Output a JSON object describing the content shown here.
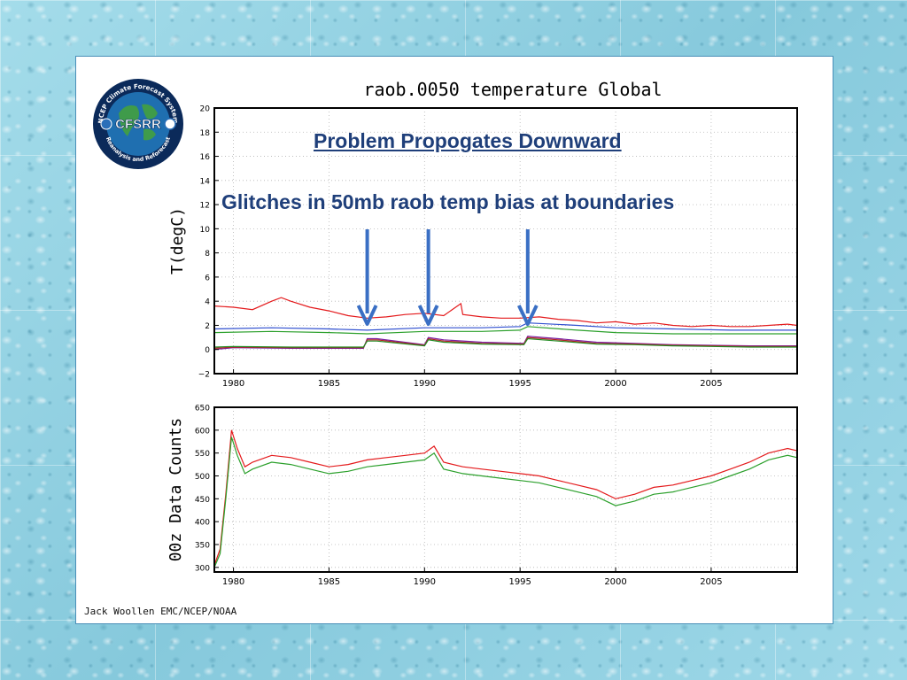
{
  "overlay": {
    "title": "Problem Propogates Downward",
    "subtitle": "Glitches in 50mb raob temp bias at boundaries",
    "arrows_at_years": [
      1987.0,
      1990.2,
      1995.4
    ],
    "arrow_color": "#3a6fc4",
    "text_color": "#1f3f7a"
  },
  "credit": "Jack Woollen EMC/NCEP/NOAA",
  "logo": {
    "main": "CFSRR",
    "top_arc": "NCEP Climate Forecast System",
    "bottom_arc": "Reanalysis and Reforecast"
  },
  "chart_data": [
    {
      "type": "line",
      "title": "raob.0050 temperature Global",
      "xlabel": "",
      "ylabel": "T(degC)",
      "xlim": [
        1979,
        2009.5
      ],
      "ylim": [
        -2,
        20
      ],
      "xticks": [
        1980,
        1985,
        1990,
        1995,
        2000,
        2005
      ],
      "yticks": [
        -2,
        0,
        2,
        4,
        6,
        8,
        10,
        12,
        14,
        16,
        18,
        20
      ],
      "grid": true,
      "series": [
        {
          "name": "red",
          "color": "#e41a1c",
          "x": [
            1979,
            1980,
            1981,
            1982,
            1982.5,
            1983,
            1984,
            1985,
            1986,
            1987,
            1988,
            1989,
            1990,
            1991,
            1991.9,
            1992,
            1993,
            1994,
            1995,
            1996,
            1997,
            1998,
            1999,
            2000,
            2001,
            2002,
            2003,
            2004,
            2005,
            2006,
            2007,
            2008,
            2009,
            2009.5
          ],
          "y": [
            3.6,
            3.5,
            3.3,
            4.0,
            4.3,
            4.0,
            3.5,
            3.2,
            2.8,
            2.6,
            2.7,
            2.9,
            3.0,
            2.8,
            3.8,
            2.9,
            2.7,
            2.6,
            2.6,
            2.7,
            2.5,
            2.4,
            2.2,
            2.3,
            2.1,
            2.2,
            2.0,
            1.9,
            2.0,
            1.9,
            1.9,
            2.0,
            2.1,
            2.0
          ]
        },
        {
          "name": "blue",
          "color": "#3050d0",
          "x": [
            1979,
            1982,
            1985,
            1987,
            1990,
            1993,
            1995,
            1995.4,
            1998,
            2000,
            2003,
            2006,
            2009.5
          ],
          "y": [
            1.7,
            1.8,
            1.7,
            1.6,
            1.8,
            1.8,
            1.9,
            2.2,
            2.0,
            1.8,
            1.7,
            1.6,
            1.6
          ]
        },
        {
          "name": "green",
          "color": "#2ca02c",
          "x": [
            1979,
            1982,
            1985,
            1987,
            1990,
            1993,
            1995,
            1995.4,
            1998,
            2000,
            2003,
            2006,
            2009.5
          ],
          "y": [
            1.4,
            1.5,
            1.4,
            1.3,
            1.5,
            1.5,
            1.6,
            1.9,
            1.6,
            1.4,
            1.3,
            1.3,
            1.3
          ]
        },
        {
          "name": "purple",
          "color": "#7a1fa2",
          "x": [
            1979,
            1980,
            1983,
            1986.8,
            1987.0,
            1987.5,
            1990.0,
            1990.2,
            1991,
            1993,
            1995.2,
            1995.4,
            1997,
            1999,
            2001,
            2003,
            2005,
            2007,
            2009.5
          ],
          "y": [
            0.0,
            0.15,
            0.1,
            0.1,
            0.9,
            0.9,
            0.4,
            1.0,
            0.8,
            0.6,
            0.5,
            1.1,
            0.9,
            0.6,
            0.5,
            0.4,
            0.35,
            0.3,
            0.3
          ]
        },
        {
          "name": "darkred",
          "color": "#b22222",
          "x": [
            1979,
            1980,
            1983,
            1986.8,
            1987.0,
            1987.5,
            1990.0,
            1990.2,
            1991,
            1993,
            1995.2,
            1995.4,
            1997,
            1999,
            2001,
            2003,
            2005,
            2007,
            2009.5
          ],
          "y": [
            0.1,
            0.2,
            0.15,
            0.15,
            0.8,
            0.8,
            0.35,
            0.9,
            0.7,
            0.5,
            0.45,
            1.0,
            0.8,
            0.5,
            0.45,
            0.35,
            0.3,
            0.25,
            0.25
          ]
        },
        {
          "name": "darkgreen",
          "color": "#228b22",
          "x": [
            1979,
            1980,
            1983,
            1986.8,
            1987.0,
            1987.5,
            1990.0,
            1990.2,
            1991,
            1993,
            1995.2,
            1995.4,
            1997,
            1999,
            2001,
            2003,
            2005,
            2007,
            2009.5
          ],
          "y": [
            0.2,
            0.25,
            0.2,
            0.2,
            0.7,
            0.7,
            0.3,
            0.8,
            0.6,
            0.45,
            0.4,
            0.9,
            0.7,
            0.45,
            0.4,
            0.3,
            0.25,
            0.2,
            0.2
          ]
        }
      ]
    },
    {
      "type": "line",
      "title": "",
      "xlabel": "",
      "ylabel": "00z Data Counts",
      "xlim": [
        1979,
        2009.5
      ],
      "ylim": [
        290,
        650
      ],
      "xticks": [
        1980,
        1985,
        1990,
        1995,
        2000,
        2005
      ],
      "yticks": [
        300,
        350,
        400,
        450,
        500,
        550,
        600,
        650
      ],
      "grid": true,
      "series": [
        {
          "name": "red",
          "color": "#e41a1c",
          "x": [
            1979,
            1979.3,
            1979.6,
            1979.9,
            1980.2,
            1980.6,
            1981,
            1982,
            1983,
            1984,
            1985,
            1986,
            1987,
            1988,
            1989,
            1990,
            1990.5,
            1991,
            1992,
            1993,
            1994,
            1995,
            1996,
            1997,
            1998,
            1999,
            2000,
            2001,
            2002,
            2003,
            2004,
            2005,
            2006,
            2007,
            2008,
            2009,
            2009.5
          ],
          "y": [
            305,
            340,
            460,
            600,
            560,
            520,
            530,
            545,
            540,
            530,
            520,
            525,
            535,
            540,
            545,
            550,
            565,
            530,
            520,
            515,
            510,
            505,
            500,
            490,
            480,
            470,
            450,
            460,
            475,
            480,
            490,
            500,
            515,
            530,
            550,
            560,
            555
          ]
        },
        {
          "name": "green",
          "color": "#2ca02c",
          "x": [
            1979,
            1979.3,
            1979.6,
            1979.9,
            1980.2,
            1980.6,
            1981,
            1982,
            1983,
            1984,
            1985,
            1986,
            1987,
            1988,
            1989,
            1990,
            1990.5,
            1991,
            1992,
            1993,
            1994,
            1995,
            1996,
            1997,
            1998,
            1999,
            2000,
            2001,
            2002,
            2003,
            2004,
            2005,
            2006,
            2007,
            2008,
            2009,
            2009.5
          ],
          "y": [
            300,
            330,
            450,
            585,
            545,
            505,
            515,
            530,
            525,
            515,
            505,
            510,
            520,
            525,
            530,
            535,
            550,
            515,
            505,
            500,
            495,
            490,
            485,
            475,
            465,
            455,
            435,
            445,
            460,
            465,
            475,
            485,
            500,
            515,
            535,
            545,
            540
          ]
        }
      ]
    }
  ]
}
